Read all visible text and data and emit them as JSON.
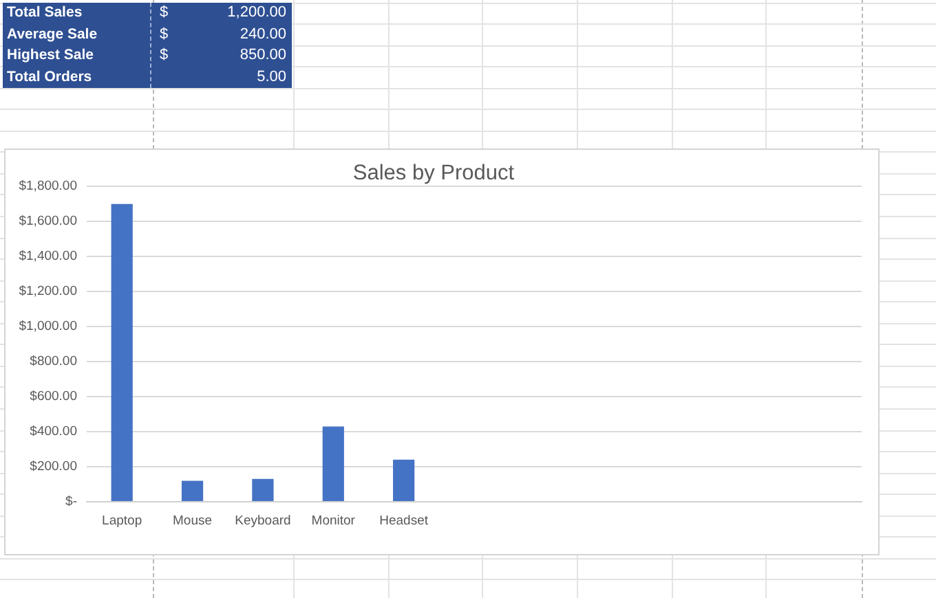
{
  "chart_data": {
    "type": "bar",
    "title": "Sales by Product",
    "categories": [
      "Laptop",
      "Mouse",
      "Keyboard",
      "Monitor",
      "Headset",
      null,
      null,
      null,
      null,
      null,
      null
    ],
    "values": [
      1700,
      120,
      130,
      430,
      240,
      null,
      null,
      null,
      null,
      null,
      null
    ],
    "color": "#4472c4",
    "ylim": [
      0,
      1800
    ],
    "yticks": [
      {
        "value": 0,
        "label": "$-"
      },
      {
        "value": 200,
        "label": "$200.00"
      },
      {
        "value": 400,
        "label": "$400.00"
      },
      {
        "value": 600,
        "label": "$600.00"
      },
      {
        "value": 800,
        "label": "$800.00"
      },
      {
        "value": 1000,
        "label": "$1,000.00"
      },
      {
        "value": 1200,
        "label": "$1,200.00"
      },
      {
        "value": 1400,
        "label": "$1,400.00"
      },
      {
        "value": 1600,
        "label": "$1,600.00"
      },
      {
        "value": 1800,
        "label": "$1,800.00"
      }
    ],
    "grid": "y",
    "annotations": [
      "Total Sales $ 1,200.00",
      "Average Sale $ 240.00",
      "Highest Sale $ 850.00",
      "Total Orders 5.00"
    ]
  }
}
